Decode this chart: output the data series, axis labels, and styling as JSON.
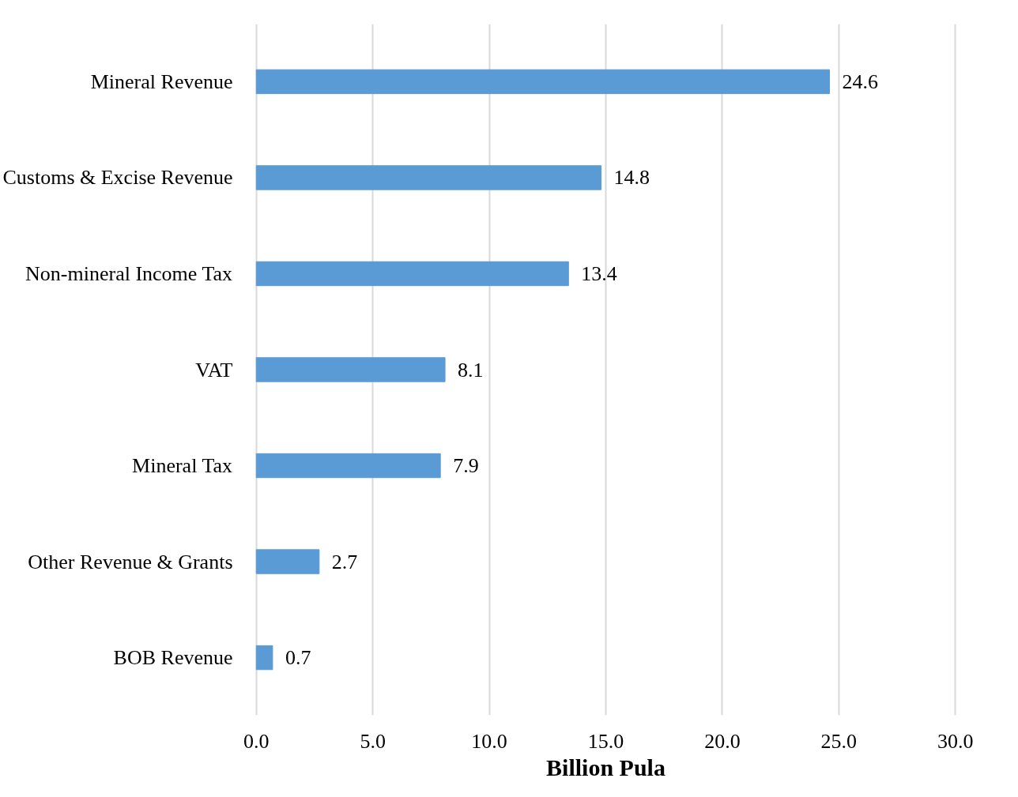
{
  "chart_data": {
    "type": "bar",
    "orientation": "horizontal",
    "xlabel": "Billion Pula",
    "categories": [
      "Mineral Revenue",
      "Customs & Excise Revenue",
      "Non-mineral Income Tax",
      "VAT",
      "Mineral Tax",
      "Other Revenue & Grants",
      "BOB Revenue"
    ],
    "values": [
      24.6,
      14.8,
      13.4,
      8.1,
      7.9,
      2.7,
      0.7
    ],
    "color": "#5b9bd5",
    "xlim": [
      0,
      30
    ],
    "xticks": [
      {
        "value": 0,
        "label": "0.0"
      },
      {
        "value": 5,
        "label": "5.0"
      },
      {
        "value": 10,
        "label": "10.0"
      },
      {
        "value": 15,
        "label": "15.0"
      },
      {
        "value": 20,
        "label": "20.0"
      },
      {
        "value": 25,
        "label": "25.0"
      },
      {
        "value": 30,
        "label": "30.0"
      }
    ],
    "grid": "x",
    "data_labels": true
  }
}
